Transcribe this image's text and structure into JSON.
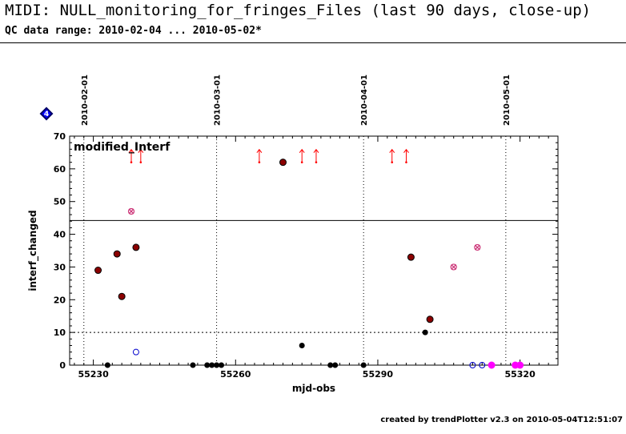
{
  "header": {
    "title": "MIDI: NULL_monitoring_for_fringes_Files (last 90 days, close-up)",
    "subtitle": "QC data range: 2010-02-04 ... 2010-05-02*"
  },
  "footer": {
    "text": "created by trendPlotter v2.3 on 2010-05-04T12:51:07"
  },
  "badge": {
    "text": "4"
  },
  "colors": {
    "outlier": "#ff0000",
    "dark_red": "#8b0000",
    "pink": "#cc3377",
    "blue": "#0000cc",
    "magenta": "#ff00ff",
    "black": "#000000",
    "badge_fill": "#0000ff",
    "badge_border": "#000066"
  },
  "chart_data": {
    "type": "scatter",
    "title": "modified_Interf",
    "xlabel": "mjd-obs",
    "ylabel": "interf_changed",
    "xlim": [
      55225,
      55328
    ],
    "ylim": [
      0,
      70
    ],
    "xticks": [
      55230,
      55260,
      55290,
      55320
    ],
    "yticks": [
      0,
      10,
      20,
      30,
      40,
      50,
      60,
      70
    ],
    "date_markers": [
      {
        "label": "2010-02-01",
        "x": 55228
      },
      {
        "label": "2010-03-01",
        "x": 55256
      },
      {
        "label": "2010-04-01",
        "x": 55287
      },
      {
        "label": "2010-05-01",
        "x": 55317
      }
    ],
    "reference_lines": [
      {
        "y": 44.2,
        "style": "solid"
      },
      {
        "y": 10,
        "style": "dotted"
      }
    ],
    "series": [
      {
        "marker": "filled-black",
        "points": [
          [
            55233,
            0
          ],
          [
            55251,
            0
          ],
          [
            55254,
            0
          ],
          [
            55255,
            0
          ],
          [
            55256,
            0
          ],
          [
            55257,
            0
          ],
          [
            55274,
            6
          ],
          [
            55280,
            0
          ],
          [
            55281,
            0
          ],
          [
            55287,
            0
          ],
          [
            55300,
            10
          ]
        ]
      },
      {
        "marker": "darkred-filled",
        "points": [
          [
            55231,
            29
          ],
          [
            55235,
            34
          ],
          [
            55236,
            21
          ],
          [
            55239,
            36
          ],
          [
            55270,
            62
          ],
          [
            55297,
            33
          ],
          [
            55301,
            14
          ]
        ]
      },
      {
        "marker": "pink-cross",
        "points": [
          [
            55238,
            47
          ],
          [
            55306,
            30
          ],
          [
            55311,
            36
          ]
        ]
      },
      {
        "marker": "blue-open",
        "points": [
          [
            55239,
            4
          ],
          [
            55310,
            0
          ],
          [
            55312,
            0
          ]
        ]
      },
      {
        "marker": "magenta-filled",
        "points": [
          [
            55314,
            0
          ],
          [
            55319,
            0
          ],
          [
            55320,
            0
          ]
        ]
      },
      {
        "marker": "up-arrow",
        "points": [
          [
            55238,
            62
          ],
          [
            55240,
            62
          ],
          [
            55265,
            62
          ],
          [
            55274,
            62
          ],
          [
            55277,
            62
          ],
          [
            55293,
            62
          ],
          [
            55296,
            62
          ]
        ]
      }
    ]
  }
}
